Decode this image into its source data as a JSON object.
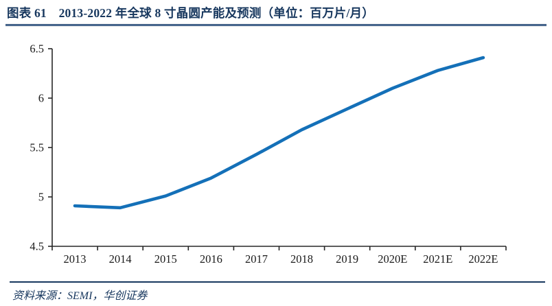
{
  "header": {
    "title": "图表 61　2013-2022 年全球 8 寸晶圆产能及预测（单位：百万片/月）"
  },
  "footer": {
    "source": "资料来源：SEMI，华创证券"
  },
  "colors": {
    "navy": "#17375E",
    "series_line": "#1470B8",
    "axis": "#262626",
    "tick_label": "#1a1a1a"
  },
  "chart_data": {
    "type": "line",
    "title": "2013-2022 年全球 8 寸晶圆产能及预测",
    "unit": "百万片/月",
    "categories": [
      "2013",
      "2014",
      "2015",
      "2016",
      "2017",
      "2018",
      "2019",
      "2020E",
      "2021E",
      "2022E"
    ],
    "series": [
      {
        "name": "全球8寸晶圆产能",
        "values": [
          4.91,
          4.89,
          5.01,
          5.19,
          5.43,
          5.68,
          5.89,
          6.1,
          6.28,
          6.41
        ]
      }
    ],
    "xlabel": "",
    "ylabel": "",
    "yticks": [
      4.5,
      5,
      5.5,
      6,
      6.5
    ],
    "ylim": [
      4.5,
      6.5
    ],
    "grid": false,
    "legend": "none"
  }
}
